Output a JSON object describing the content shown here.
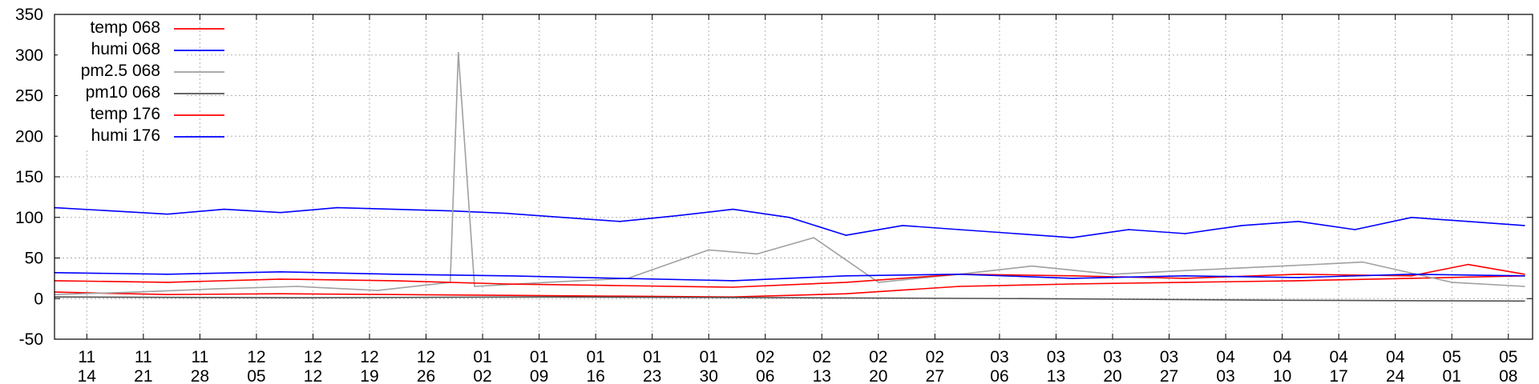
{
  "chart_data": {
    "type": "line",
    "ylim": [
      -50,
      350
    ],
    "y_ticks": [
      -50,
      0,
      50,
      100,
      150,
      200,
      250,
      300,
      350
    ],
    "x_range": [
      "2023-11-10",
      "2024-05-11"
    ],
    "x_ticks": [
      {
        "date": "2023-11-14",
        "month": "11",
        "day": "14"
      },
      {
        "date": "2023-11-21",
        "month": "11",
        "day": "21"
      },
      {
        "date": "2023-11-28",
        "month": "11",
        "day": "28"
      },
      {
        "date": "2023-12-05",
        "month": "12",
        "day": "05"
      },
      {
        "date": "2023-12-12",
        "month": "12",
        "day": "12"
      },
      {
        "date": "2023-12-19",
        "month": "12",
        "day": "19"
      },
      {
        "date": "2023-12-26",
        "month": "12",
        "day": "26"
      },
      {
        "date": "2024-01-02",
        "month": "01",
        "day": "02"
      },
      {
        "date": "2024-01-09",
        "month": "01",
        "day": "09"
      },
      {
        "date": "2024-01-16",
        "month": "01",
        "day": "16"
      },
      {
        "date": "2024-01-23",
        "month": "01",
        "day": "23"
      },
      {
        "date": "2024-01-30",
        "month": "01",
        "day": "30"
      },
      {
        "date": "2024-02-06",
        "month": "02",
        "day": "06"
      },
      {
        "date": "2024-02-13",
        "month": "02",
        "day": "13"
      },
      {
        "date": "2024-02-20",
        "month": "02",
        "day": "20"
      },
      {
        "date": "2024-02-27",
        "month": "02",
        "day": "27"
      },
      {
        "date": "2024-03-06",
        "month": "03",
        "day": "06"
      },
      {
        "date": "2024-03-13",
        "month": "03",
        "day": "13"
      },
      {
        "date": "2024-03-20",
        "month": "03",
        "day": "20"
      },
      {
        "date": "2024-03-27",
        "month": "03",
        "day": "27"
      },
      {
        "date": "2024-04-03",
        "month": "04",
        "day": "03"
      },
      {
        "date": "2024-04-10",
        "month": "04",
        "day": "10"
      },
      {
        "date": "2024-04-17",
        "month": "04",
        "day": "17"
      },
      {
        "date": "2024-04-24",
        "month": "04",
        "day": "24"
      },
      {
        "date": "2024-05-01",
        "month": "05",
        "day": "01"
      },
      {
        "date": "2024-05-08",
        "month": "05",
        "day": "08"
      }
    ],
    "grid": true,
    "legend_position": "top-left",
    "series": [
      {
        "name": "temp 068",
        "color": "#ff0000",
        "x": [
          "2023-11-10",
          "2023-11-24",
          "2023-12-08",
          "2023-12-22",
          "2024-01-05",
          "2024-01-19",
          "2024-02-02",
          "2024-02-16",
          "2024-03-01",
          "2024-03-15",
          "2024-03-29",
          "2024-04-12",
          "2024-04-26",
          "2024-05-10"
        ],
        "y": [
          8,
          5,
          6,
          5,
          4,
          3,
          2,
          6,
          15,
          18,
          20,
          22,
          25,
          28
        ]
      },
      {
        "name": "humi 068",
        "color": "#0000ff",
        "x": [
          "2023-11-10",
          "2023-11-17",
          "2023-11-24",
          "2023-12-01",
          "2023-12-08",
          "2023-12-15",
          "2023-12-22",
          "2023-12-29",
          "2024-01-05",
          "2024-01-12",
          "2024-01-19",
          "2024-01-26",
          "2024-02-02",
          "2024-02-09",
          "2024-02-16",
          "2024-02-23",
          "2024-03-01",
          "2024-03-08",
          "2024-03-15",
          "2024-03-22",
          "2024-03-29",
          "2024-04-05",
          "2024-04-12",
          "2024-04-19",
          "2024-04-26",
          "2024-05-03",
          "2024-05-10"
        ],
        "y": [
          112,
          108,
          104,
          110,
          106,
          112,
          110,
          108,
          105,
          100,
          95,
          102,
          110,
          100,
          78,
          90,
          85,
          80,
          75,
          85,
          80,
          90,
          95,
          85,
          100,
          95,
          90
        ]
      },
      {
        "name": "pm2.5 068",
        "color": "#a0a0a0",
        "x": [
          "2023-11-10",
          "2023-11-20",
          "2023-11-30",
          "2023-12-10",
          "2023-12-20",
          "2023-12-29",
          "2023-12-30",
          "2024-01-01",
          "2024-01-10",
          "2024-01-20",
          "2024-01-30",
          "2024-02-05",
          "2024-02-12",
          "2024-02-20",
          "2024-03-01",
          "2024-03-10",
          "2024-03-20",
          "2024-03-30",
          "2024-04-10",
          "2024-04-20",
          "2024-05-01",
          "2024-05-10"
        ],
        "y": [
          5,
          8,
          12,
          15,
          10,
          20,
          303,
          15,
          20,
          25,
          60,
          55,
          75,
          20,
          30,
          40,
          30,
          35,
          40,
          45,
          20,
          15
        ]
      },
      {
        "name": "pm10 068",
        "color": "#505050",
        "x": [
          "2023-11-10",
          "2023-12-10",
          "2024-01-10",
          "2024-02-10",
          "2024-03-10",
          "2024-04-10",
          "2024-05-10"
        ],
        "y": [
          2,
          1,
          2,
          1,
          0,
          -2,
          -3
        ]
      },
      {
        "name": "temp 176",
        "color": "#ff0000",
        "x": [
          "2023-11-10",
          "2023-11-24",
          "2023-12-08",
          "2023-12-22",
          "2024-01-05",
          "2024-01-19",
          "2024-02-02",
          "2024-02-16",
          "2024-03-01",
          "2024-03-15",
          "2024-03-29",
          "2024-04-12",
          "2024-04-26",
          "2024-05-03",
          "2024-05-10"
        ],
        "y": [
          22,
          20,
          24,
          22,
          18,
          16,
          14,
          20,
          30,
          28,
          25,
          30,
          28,
          42,
          30
        ]
      },
      {
        "name": "humi 176",
        "color": "#0000ff",
        "x": [
          "2023-11-10",
          "2023-11-24",
          "2023-12-08",
          "2023-12-22",
          "2024-01-05",
          "2024-01-19",
          "2024-02-02",
          "2024-02-16",
          "2024-03-01",
          "2024-03-15",
          "2024-03-29",
          "2024-04-12",
          "2024-04-26",
          "2024-05-10"
        ],
        "y": [
          32,
          30,
          33,
          30,
          28,
          25,
          22,
          28,
          30,
          25,
          28,
          26,
          30,
          28
        ]
      }
    ]
  }
}
